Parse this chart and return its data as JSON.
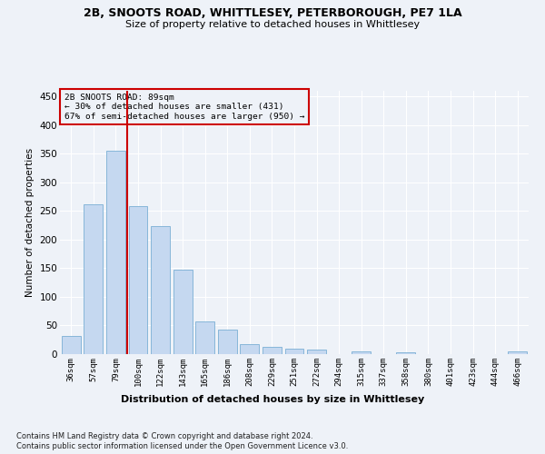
{
  "title1": "2B, SNOOTS ROAD, WHITTLESEY, PETERBOROUGH, PE7 1LA",
  "title2": "Size of property relative to detached houses in Whittlesey",
  "xlabel": "Distribution of detached houses by size in Whittlesey",
  "ylabel": "Number of detached properties",
  "categories": [
    "36sqm",
    "57sqm",
    "79sqm",
    "100sqm",
    "122sqm",
    "143sqm",
    "165sqm",
    "186sqm",
    "208sqm",
    "229sqm",
    "251sqm",
    "272sqm",
    "294sqm",
    "315sqm",
    "337sqm",
    "358sqm",
    "380sqm",
    "401sqm",
    "423sqm",
    "444sqm",
    "466sqm"
  ],
  "values": [
    32,
    261,
    356,
    258,
    224,
    148,
    57,
    43,
    18,
    13,
    10,
    8,
    0,
    5,
    0,
    3,
    0,
    0,
    0,
    0,
    4
  ],
  "bar_color": "#c5d8f0",
  "bar_edge_color": "#7aafd4",
  "highlight_line_color": "#cc0000",
  "annotation_line1": "2B SNOOTS ROAD: 89sqm",
  "annotation_line2": "← 30% of detached houses are smaller (431)",
  "annotation_line3": "67% of semi-detached houses are larger (950) →",
  "annotation_box_color": "#cc0000",
  "ylim": [
    0,
    460
  ],
  "yticks": [
    0,
    50,
    100,
    150,
    200,
    250,
    300,
    350,
    400,
    450
  ],
  "footnote1": "Contains HM Land Registry data © Crown copyright and database right 2024.",
  "footnote2": "Contains public sector information licensed under the Open Government Licence v3.0.",
  "bg_color": "#eef2f8"
}
